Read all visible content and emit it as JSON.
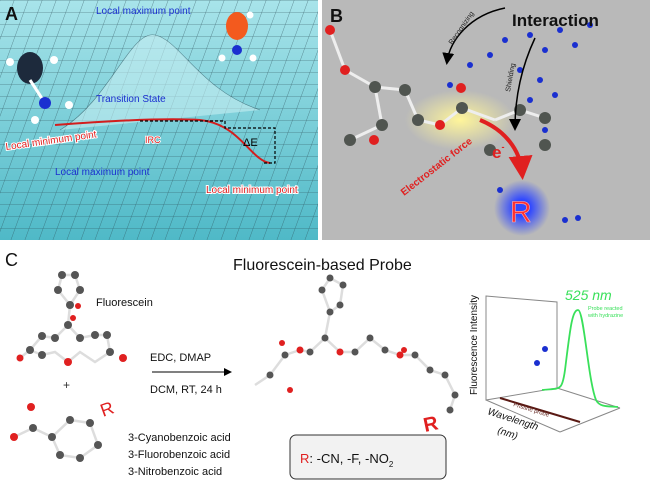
{
  "panel_a": {
    "label": "A",
    "local_max_top": "Local maximum point",
    "transition_state": "Transition State",
    "local_min_left": "Local minimum point",
    "irc": "IRC",
    "delta_e": "ΔE",
    "local_max_bottom": "Local maximum point",
    "local_min_right": "Local minimum point",
    "atom_n": "N"
  },
  "panel_b": {
    "label": "B",
    "title": "Interaction",
    "recognizing": "Recognizing",
    "shielding": "Shielding",
    "electrostatic": "Electrostatic force",
    "electron": "e",
    "electron_sup": "-",
    "r": "R"
  },
  "panel_c": {
    "label": "C",
    "title": "Fluorescein-based Probe",
    "fluorescein": "Fluorescein",
    "plus": "+",
    "r_group": "R",
    "reagents_top": "EDC, DMAP",
    "reagents_bottom": "DCM, RT, 24 h",
    "acids": [
      "3-Cyanobenzoic acid",
      "3-Fluorobenzoic acid",
      "3-Nitrobenzoic acid"
    ],
    "r_box": {
      "r": "R",
      "text": ": -CN, -F, -NO",
      "sub": "2"
    },
    "spectrum": {
      "ylabel": "Fluorescence Intensity",
      "xlabel_1": "Wavelength",
      "xlabel_2": "(nm)",
      "peak_label": "525 nm",
      "reacted_1": "Probe reacted",
      "reacted_2": "with hydrazine",
      "pristine": "Pristine probe",
      "reacted_color": "#39e05a",
      "pristine_color": "#5a1a14"
    }
  },
  "colors": {
    "teal": "#7fd3dc",
    "gray_bg": "#b9b9b9",
    "red": "#e02020",
    "blue": "#1a2fd0"
  }
}
